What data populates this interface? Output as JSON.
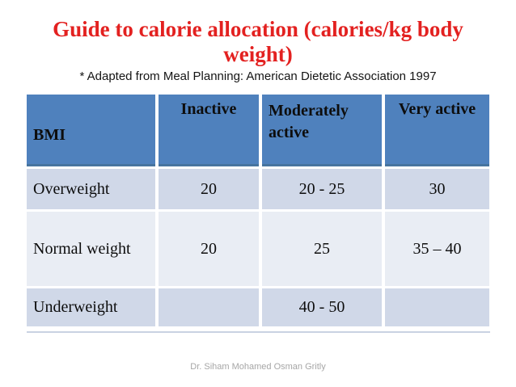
{
  "slide": {
    "title_line1": "Guide to calorie allocation (calories/kg body",
    "title_line2": "weight)",
    "subtitle": "* Adapted from Meal Planning: American Dietetic Association 1997",
    "footer": "Dr. Siham Mohamed Osman Gritly"
  },
  "colors": {
    "title_red": "#e32120",
    "header_blue": "#4f81bd",
    "header_blue_dark_edge": "#47749f",
    "row_band_dark": "#d0d8e8",
    "row_band_light": "#e9edf4",
    "bottom_rule": "#c9d2e2",
    "footer_gray": "#a6a6a6",
    "text_black": "#0d0d0d"
  },
  "table": {
    "columns": [
      "BMI",
      "Inactive",
      "Moderately active",
      "Very active"
    ],
    "rows": [
      {
        "label": "Overweight",
        "inactive": "20",
        "moderately_active": "20 - 25",
        "very_active": "30"
      },
      {
        "label": "Normal weight",
        "inactive": "20",
        "moderately_active": "25",
        "very_active": "35 – 40"
      },
      {
        "label": "Underweight",
        "inactive": "",
        "moderately_active": "40 - 50",
        "very_active": ""
      }
    ]
  }
}
